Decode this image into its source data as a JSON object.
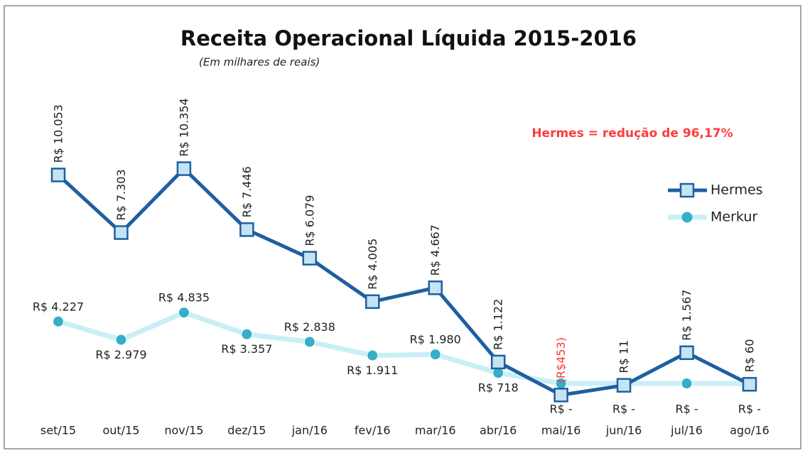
{
  "chart_data": {
    "type": "line",
    "title": "Receita Operacional Líquida 2015-2016",
    "subtitle": "(Em milhares de reais)",
    "annotation": "Hermes = redução de 96,17%",
    "categories": [
      "set/15",
      "out/15",
      "nov/15",
      "dez/15",
      "jan/16",
      "fev/16",
      "mar/16",
      "abr/16",
      "mai/16",
      "jun/16",
      "jul/16",
      "ago/16"
    ],
    "ylim": [
      -2000,
      12000
    ],
    "y2lim": [
      -3000,
      17000
    ],
    "legend": "right",
    "negative_label_color": "#ff3b3b",
    "series": [
      {
        "name": "Hermes",
        "color": "#1f5fa0",
        "marker_color": "#c4e4f4",
        "marker": "square",
        "values": [
          10053,
          7303,
          10354,
          7446,
          6079,
          4005,
          4667,
          1122,
          -453,
          11,
          1567,
          60
        ],
        "value_labels": [
          "R$ 10.053",
          "R$ 7.303",
          "R$ 10.354",
          "R$ 7.446",
          "R$ 6.079",
          "R$ 4.005",
          "R$ 4.667",
          "R$ 1.122",
          "(R$453)",
          "R$ 11",
          "R$ 1.567",
          "R$ 60"
        ]
      },
      {
        "name": "Merkur",
        "color": "#c9eef6",
        "marker_color": "#35aec8",
        "marker": "circle",
        "axis": "y2",
        "values": [
          4227,
          2979,
          4835,
          3357,
          2838,
          1911,
          1980,
          718,
          0,
          0,
          0,
          0
        ],
        "value_labels": [
          "R$ 4.227",
          "R$ 2.979",
          "R$ 4.835",
          "R$ 3.357",
          "R$ 2.838",
          "R$ 1.911",
          "R$ 1.980",
          "R$ 718",
          "R$ -",
          "R$ -",
          "R$ -",
          "R$ -"
        ]
      }
    ]
  }
}
